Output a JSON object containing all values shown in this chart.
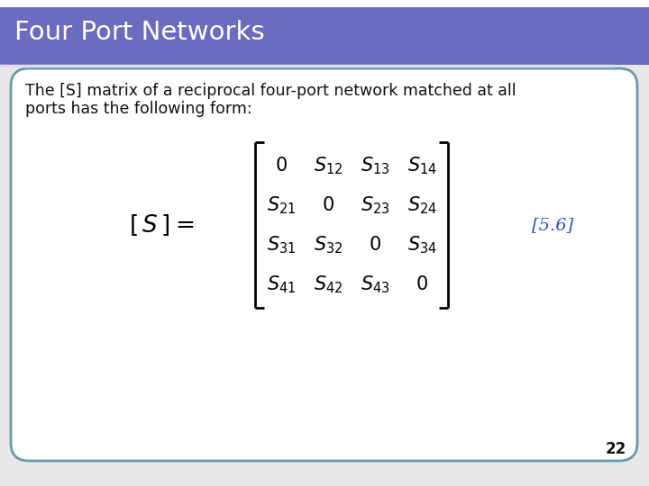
{
  "title": "Four Port Networks",
  "title_bg_color": "#6B6BBF",
  "title_text_color": "#FFFFFF",
  "slide_bg_color": "#F0F0F0",
  "border_color": "#6699AA",
  "body_text_line1": "The [S] matrix of a reciprocal four-port network matched at all",
  "body_text_line2": "ports has the following form:",
  "body_text_color": "#111111",
  "ref_text": "[5.6]",
  "ref_color": "#3355CC",
  "page_number": "22",
  "page_number_color": "#111111",
  "header_line_color": "#CCCCEE",
  "matrix_rows": [
    [
      "0",
      "S_{12}",
      "S_{13}",
      "S_{14}"
    ],
    [
      "S_{21}",
      "0",
      "S_{23}",
      "S_{24}"
    ],
    [
      "S_{31}",
      "S_{32}",
      "0",
      "S_{34}"
    ],
    [
      "S_{41}",
      "S_{42}",
      "S_{43}",
      "0"
    ]
  ]
}
